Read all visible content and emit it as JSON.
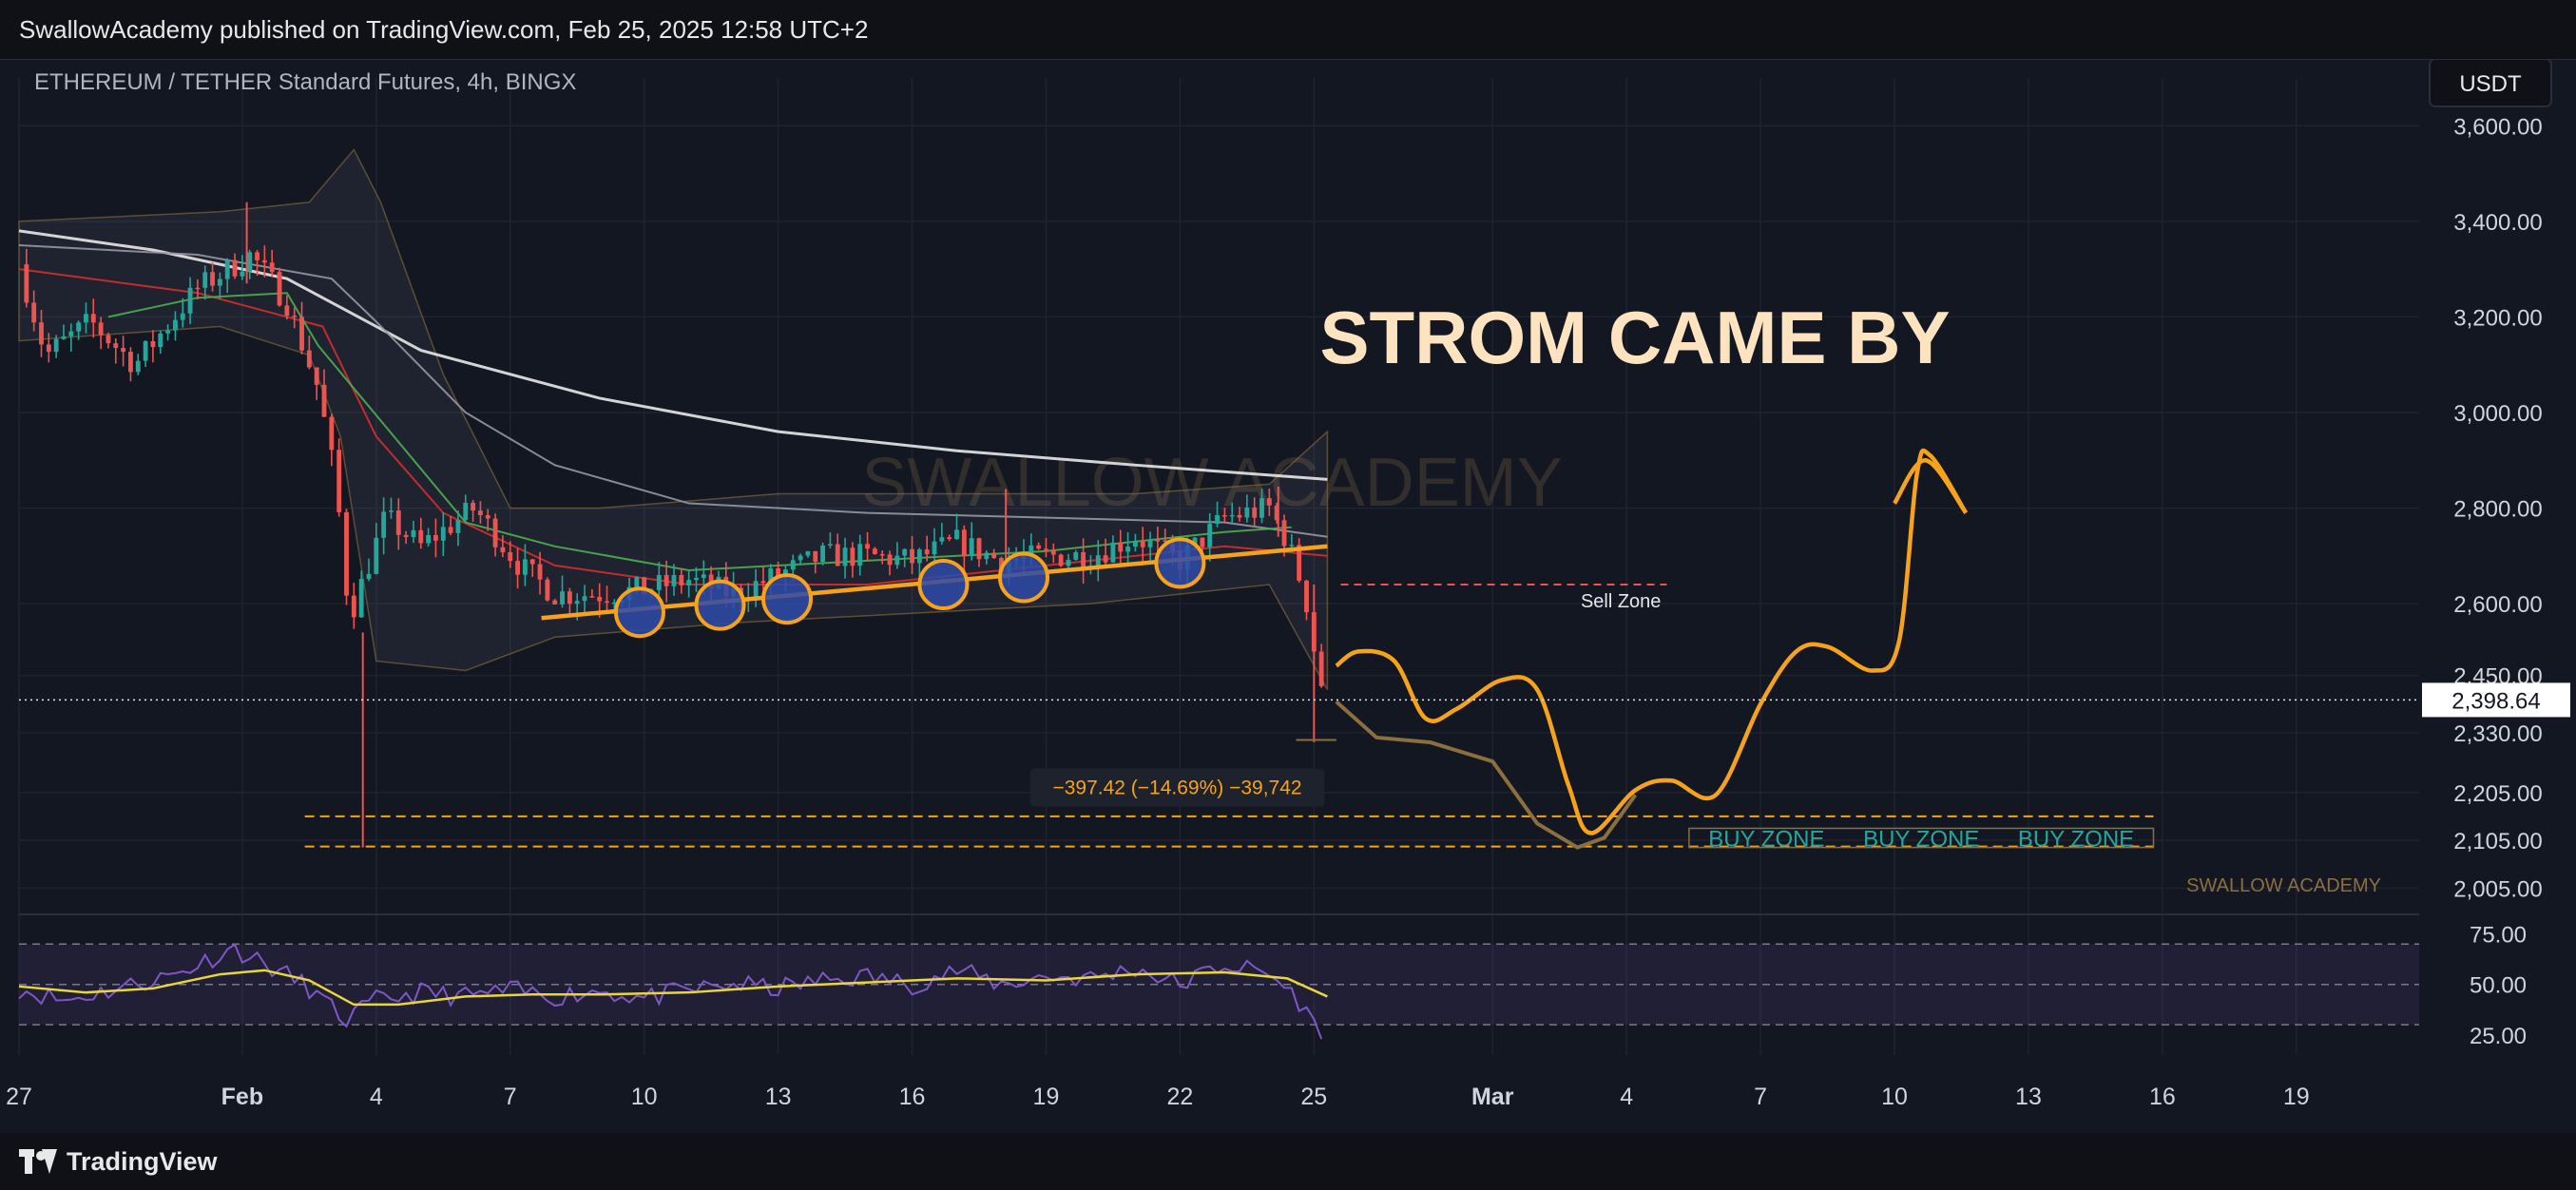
{
  "header": {
    "published": "SwallowAcademy published on TradingView.com, Feb 25, 2025 12:58 UTC+2"
  },
  "footer": {
    "brand": "TradingView",
    "logo_icon": "tradingview-logo-icon"
  },
  "colors": {
    "background": "#131722",
    "grid": "#1f2330",
    "up": "#26a69a",
    "down": "#ef5350",
    "annotation": "#f7a21b",
    "title_text": "#fde3bf",
    "rsi_line": "#7e57c2",
    "rsi_ma": "#e8d63a",
    "buy_zone": "#26a69a",
    "sell_zone": "#ef5350",
    "circle_fill": "#2e4aa8"
  },
  "chart_data": {
    "type": "candlestick",
    "title": "ETHEREUM / TETHER Standard Futures, 4h, BINGX",
    "currency_button": "USDT",
    "price_axis": {
      "range": [
        1950,
        3700
      ],
      "ticks": [
        3600,
        3400,
        3200,
        3000,
        2800,
        2600,
        2450,
        2330,
        2205,
        2105,
        2005
      ],
      "tick_labels": [
        "3,600.00",
        "3,400.00",
        "3,200.00",
        "3,000.00",
        "2,800.00",
        "2,600.00",
        "2,450.00",
        "2,330.00",
        "2,205.00",
        "2,105.00",
        "2,005.00"
      ]
    },
    "time_axis": {
      "range": [
        27,
        70
      ],
      "ticks": [
        {
          "t": 27,
          "label": "27"
        },
        {
          "t": 32,
          "label": "Feb"
        },
        {
          "t": 35,
          "label": "4"
        },
        {
          "t": 38,
          "label": "7"
        },
        {
          "t": 41,
          "label": "10"
        },
        {
          "t": 44,
          "label": "13"
        },
        {
          "t": 47,
          "label": "16"
        },
        {
          "t": 50,
          "label": "19"
        },
        {
          "t": 53,
          "label": "22"
        },
        {
          "t": 56,
          "label": "25"
        },
        {
          "t": 60,
          "label": "Mar"
        },
        {
          "t": 63,
          "label": "4"
        },
        {
          "t": 66,
          "label": "7"
        },
        {
          "t": 69,
          "label": "10"
        },
        {
          "t": 72,
          "label": "13"
        },
        {
          "t": 75,
          "label": "16"
        },
        {
          "t": 78,
          "label": "19"
        }
      ]
    },
    "candle_series": {
      "interval": "4h",
      "anchors": [
        {
          "t": 27.0,
          "p": 3310
        },
        {
          "t": 27.6,
          "p": 3120
        },
        {
          "t": 28.6,
          "p": 3190
        },
        {
          "t": 29.6,
          "p": 3100
        },
        {
          "t": 31.0,
          "p": 3260
        },
        {
          "t": 31.7,
          "p": 3300
        },
        {
          "t": 32.2,
          "p": 3330
        },
        {
          "t": 33.0,
          "p": 3230
        },
        {
          "t": 33.7,
          "p": 3050
        },
        {
          "t": 34.1,
          "p": 2850
        },
        {
          "t": 34.4,
          "p": 2570
        },
        {
          "t": 35.2,
          "p": 2780
        },
        {
          "t": 36.0,
          "p": 2720
        },
        {
          "t": 37.2,
          "p": 2800
        },
        {
          "t": 38.2,
          "p": 2680
        },
        {
          "t": 39.0,
          "p": 2620
        },
        {
          "t": 40.0,
          "p": 2620
        },
        {
          "t": 41.0,
          "p": 2630
        },
        {
          "t": 42.0,
          "p": 2650
        },
        {
          "t": 43.0,
          "p": 2620
        },
        {
          "t": 44.0,
          "p": 2660
        },
        {
          "t": 45.0,
          "p": 2700
        },
        {
          "t": 46.0,
          "p": 2700
        },
        {
          "t": 47.0,
          "p": 2690
        },
        {
          "t": 48.0,
          "p": 2730
        },
        {
          "t": 49.0,
          "p": 2690
        },
        {
          "t": 50.0,
          "p": 2700
        },
        {
          "t": 51.0,
          "p": 2700
        },
        {
          "t": 52.0,
          "p": 2740
        },
        {
          "t": 53.0,
          "p": 2690
        },
        {
          "t": 54.0,
          "p": 2780
        },
        {
          "t": 55.0,
          "p": 2800
        },
        {
          "t": 55.4,
          "p": 2730
        },
        {
          "t": 55.8,
          "p": 2620
        },
        {
          "t": 56.1,
          "p": 2450
        },
        {
          "t": 56.3,
          "p": 2398
        }
      ],
      "spikes": [
        {
          "t": 32.1,
          "high": 3440,
          "low": 3270
        },
        {
          "t": 34.7,
          "high": 2540,
          "low": 2090
        },
        {
          "t": 49.1,
          "high": 2840,
          "low": 2680
        },
        {
          "t": 55.2,
          "high": 2845,
          "low": 2740
        },
        {
          "t": 56.0,
          "high": 2640,
          "low": 2310
        }
      ]
    },
    "moving_averages": [
      {
        "color": "#e8e8e8",
        "points": [
          [
            27,
            3380
          ],
          [
            30,
            3340
          ],
          [
            33,
            3280
          ],
          [
            36,
            3130
          ],
          [
            40,
            3030
          ],
          [
            44,
            2960
          ],
          [
            48,
            2920
          ],
          [
            52,
            2890
          ],
          [
            56.3,
            2860
          ]
        ]
      },
      {
        "color": "#9598a1",
        "points": [
          [
            27,
            3350
          ],
          [
            31,
            3330
          ],
          [
            34,
            3280
          ],
          [
            35,
            3190
          ],
          [
            37,
            3000
          ],
          [
            39,
            2890
          ],
          [
            42,
            2810
          ],
          [
            46,
            2790
          ],
          [
            50,
            2780
          ],
          [
            54,
            2770
          ],
          [
            56.3,
            2740
          ]
        ]
      },
      {
        "color": "#d32f2f",
        "points": [
          [
            27,
            3300
          ],
          [
            31,
            3250
          ],
          [
            33.8,
            3180
          ],
          [
            35,
            2950
          ],
          [
            36.5,
            2790
          ],
          [
            39,
            2680
          ],
          [
            42,
            2640
          ],
          [
            46,
            2640
          ],
          [
            50,
            2680
          ],
          [
            54,
            2720
          ],
          [
            56.3,
            2700
          ]
        ]
      },
      {
        "color": "#4caf50",
        "points": [
          [
            29,
            3200
          ],
          [
            31,
            3240
          ],
          [
            33,
            3250
          ],
          [
            33.7,
            3140
          ],
          [
            37,
            2770
          ],
          [
            39,
            2720
          ],
          [
            42,
            2670
          ],
          [
            46,
            2690
          ],
          [
            50,
            2710
          ],
          [
            54,
            2750
          ],
          [
            55.5,
            2760
          ]
        ]
      }
    ],
    "bollinger_band": {
      "upper": [
        [
          27,
          3400
        ],
        [
          31.5,
          3420
        ],
        [
          33.5,
          3440
        ],
        [
          34.5,
          3550
        ],
        [
          35.1,
          3440
        ],
        [
          36.5,
          3080
        ],
        [
          38,
          2800
        ],
        [
          40,
          2800
        ],
        [
          44,
          2830
        ],
        [
          48,
          2830
        ],
        [
          52,
          2830
        ],
        [
          55,
          2850
        ],
        [
          56.3,
          2960
        ]
      ],
      "lower": [
        [
          27,
          3150
        ],
        [
          31.5,
          3180
        ],
        [
          33.5,
          3120
        ],
        [
          34.2,
          2950
        ],
        [
          35,
          2480
        ],
        [
          37,
          2460
        ],
        [
          39,
          2530
        ],
        [
          43,
          2560
        ],
        [
          47,
          2580
        ],
        [
          51,
          2600
        ],
        [
          55,
          2640
        ],
        [
          56.3,
          2420
        ]
      ]
    },
    "trendline": {
      "t1": 38.7,
      "p1": 2570,
      "t2": 56.3,
      "p2": 2720
    },
    "touch_circles": [
      {
        "t": 40.9,
        "p": 2582
      },
      {
        "t": 42.7,
        "p": 2597
      },
      {
        "t": 44.2,
        "p": 2610
      },
      {
        "t": 47.7,
        "p": 2640
      },
      {
        "t": 49.5,
        "p": 2655
      },
      {
        "t": 53.0,
        "p": 2685
      }
    ],
    "projection_path": [
      [
        56.5,
        2470
      ],
      [
        57.0,
        2500
      ],
      [
        57.8,
        2480
      ],
      [
        58.5,
        2360
      ],
      [
        59.2,
        2380
      ],
      [
        60.2,
        2440
      ],
      [
        61.0,
        2420
      ],
      [
        61.7,
        2220
      ],
      [
        62.2,
        2120
      ],
      [
        63.2,
        2210
      ],
      [
        64.0,
        2230
      ],
      [
        65.0,
        2200
      ],
      [
        66.0,
        2390
      ],
      [
        66.8,
        2500
      ],
      [
        67.5,
        2510
      ],
      [
        68.5,
        2460
      ],
      [
        69.1,
        2520
      ],
      [
        69.5,
        2870
      ],
      [
        69.8,
        2910
      ],
      [
        70.6,
        2790
      ]
    ],
    "projection_head": [
      [
        69.0,
        2810
      ],
      [
        69.7,
        2900
      ],
      [
        70.6,
        2790
      ]
    ],
    "shadow_path": [
      [
        56.5,
        2395
      ],
      [
        57.4,
        2320
      ],
      [
        58.6,
        2310
      ],
      [
        60.0,
        2270
      ],
      [
        61.0,
        2140
      ],
      [
        61.9,
        2090
      ],
      [
        62.5,
        2110
      ],
      [
        63.2,
        2200
      ]
    ],
    "zones": {
      "buy_upper": 2155,
      "buy_lower": 2092,
      "buy_t1": 33.4,
      "buy_t2": 74.8,
      "buy_labels": [
        "BUY ZONE",
        "BUY ZONE",
        "BUY ZONE"
      ],
      "buy_box": {
        "t1": 64.4,
        "t2": 74.8,
        "upper": 2130,
        "lower": 2090
      },
      "sell_level": 2640,
      "sell_t1": 56.6,
      "sell_t2": 63.9,
      "sell_label": "Sell Zone"
    },
    "annotations": {
      "headline": "STROM CAME BY",
      "watermark": "SWALLOW ACADEMY",
      "small_watermark": "SWALLOW ACADEMY",
      "drop_label": "−397.42 (−14.69%) −39,742",
      "drop_marker": {
        "t1": 55.6,
        "t2": 56.5,
        "p": 2315
      }
    },
    "last_price": {
      "value": 2398.64,
      "label": "2,398.64"
    },
    "rsi": {
      "ticks": [
        75,
        50,
        25
      ],
      "tick_labels": [
        "75.00",
        "50.00",
        "25.00"
      ],
      "upper": 70,
      "lower": 30,
      "range": [
        15,
        80
      ],
      "anchors": [
        [
          27,
          48
        ],
        [
          28,
          42
        ],
        [
          29,
          47
        ],
        [
          30.5,
          55
        ],
        [
          31.8,
          68
        ],
        [
          32.5,
          60
        ],
        [
          33.4,
          50
        ],
        [
          34.3,
          32
        ],
        [
          35,
          42
        ],
        [
          36,
          46
        ],
        [
          37,
          44
        ],
        [
          38,
          47
        ],
        [
          39,
          44
        ],
        [
          40,
          47
        ],
        [
          41,
          43
        ],
        [
          42,
          47
        ],
        [
          43,
          50
        ],
        [
          44,
          48
        ],
        [
          45,
          52
        ],
        [
          46,
          54
        ],
        [
          47,
          50
        ],
        [
          48,
          57
        ],
        [
          49,
          50
        ],
        [
          50,
          54
        ],
        [
          51,
          53
        ],
        [
          52,
          58
        ],
        [
          53,
          50
        ],
        [
          54,
          60
        ],
        [
          55,
          55
        ],
        [
          55.6,
          44
        ],
        [
          56.0,
          30
        ],
        [
          56.3,
          26
        ]
      ],
      "ma": [
        [
          27,
          49
        ],
        [
          28.5,
          46
        ],
        [
          30,
          48
        ],
        [
          31.5,
          55
        ],
        [
          32.5,
          57
        ],
        [
          33.5,
          52
        ],
        [
          34.5,
          40
        ],
        [
          35.5,
          40
        ],
        [
          37,
          44
        ],
        [
          38.5,
          45
        ],
        [
          40,
          45
        ],
        [
          42,
          46
        ],
        [
          44,
          49
        ],
        [
          46,
          51
        ],
        [
          48,
          53
        ],
        [
          50,
          52
        ],
        [
          52,
          55
        ],
        [
          54,
          56
        ],
        [
          55.4,
          53
        ],
        [
          56.3,
          44
        ]
      ]
    }
  }
}
